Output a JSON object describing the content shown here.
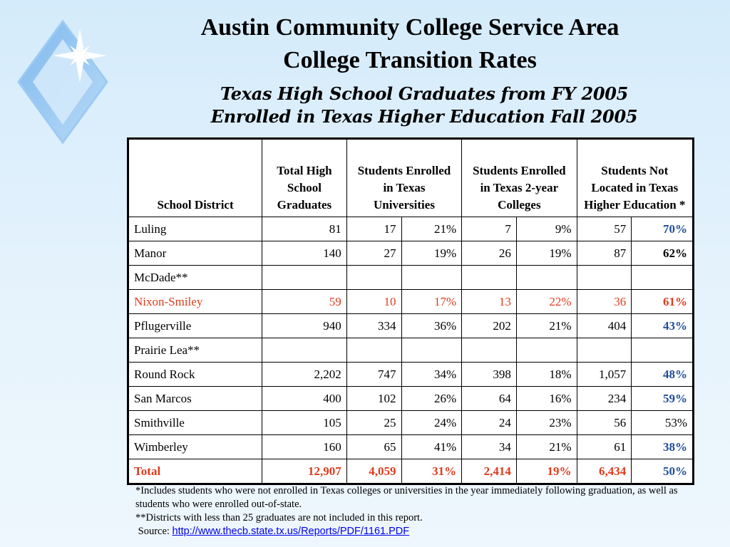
{
  "title_line1": "Austin Community College Service Area",
  "title_line2": "College Transition Rates",
  "subtitle_line1": "Texas High School Graduates from FY 2005",
  "subtitle_line2": "Enrolled in Texas Higher Education Fall 2005",
  "table": {
    "headers": {
      "district": "School District",
      "total": "Total High School Graduates",
      "universities": "Students Enrolled in Texas Universities",
      "colleges": "Students Enrolled in Texas 2-year Colleges",
      "not_located": "Students Not Located in Texas Higher Education *"
    },
    "rows": [
      {
        "district": "Luling",
        "total": "81",
        "univ_n": "17",
        "univ_pct": "21%",
        "coll_n": "7",
        "coll_pct": "9%",
        "nl_n": "57",
        "nl_pct": "70%"
      },
      {
        "district": "Manor",
        "total": "140",
        "univ_n": "27",
        "univ_pct": "19%",
        "coll_n": "26",
        "coll_pct": "19%",
        "nl_n": "87",
        "nl_pct": "62%"
      },
      {
        "district": "McDade**",
        "total": "",
        "univ_n": "",
        "univ_pct": "",
        "coll_n": "",
        "coll_pct": "",
        "nl_n": "",
        "nl_pct": ""
      },
      {
        "district": "Nixon-Smiley",
        "total": "59",
        "univ_n": "10",
        "univ_pct": "17%",
        "coll_n": "13",
        "coll_pct": "22%",
        "nl_n": "36",
        "nl_pct": "61%"
      },
      {
        "district": "Pflugerville",
        "total": "940",
        "univ_n": "334",
        "univ_pct": "36%",
        "coll_n": "202",
        "coll_pct": "21%",
        "nl_n": "404",
        "nl_pct": "43%"
      },
      {
        "district": "Prairie Lea**",
        "total": "",
        "univ_n": "",
        "univ_pct": "",
        "coll_n": "",
        "coll_pct": "",
        "nl_n": "",
        "nl_pct": ""
      },
      {
        "district": "Round Rock",
        "total": "2,202",
        "univ_n": "747",
        "univ_pct": "34%",
        "coll_n": "398",
        "coll_pct": "18%",
        "nl_n": "1,057",
        "nl_pct": "48%"
      },
      {
        "district": "San Marcos",
        "total": "400",
        "univ_n": "102",
        "univ_pct": "26%",
        "coll_n": "64",
        "coll_pct": "16%",
        "nl_n": "234",
        "nl_pct": "59%"
      },
      {
        "district": "Smithville",
        "total": "105",
        "univ_n": "25",
        "univ_pct": "24%",
        "coll_n": "24",
        "coll_pct": "23%",
        "nl_n": "56",
        "nl_pct": "53%"
      },
      {
        "district": "Wimberley",
        "total": "160",
        "univ_n": "65",
        "univ_pct": "41%",
        "coll_n": "34",
        "coll_pct": "21%",
        "nl_n": "61",
        "nl_pct": "38%"
      },
      {
        "district": "Total",
        "total": "12,907",
        "univ_n": "4,059",
        "univ_pct": "31%",
        "coll_n": "2,414",
        "coll_pct": "19%",
        "nl_n": "6,434",
        "nl_pct": "50%"
      }
    ]
  },
  "notes": {
    "footnote1": "*Includes students who were not enrolled in Texas colleges or universities in the year immediately following graduation, as well as students who were enrolled out-of-state.",
    "footnote2": "**Districts with less than 25 graduates are not included in this report.",
    "source_label": "Source:",
    "source_link": "http://www.thecb.state.tx.us/Reports/PDF/1161.PDF"
  },
  "colors": {
    "background": "#dcedfa",
    "highlight_red": "#e03b1c",
    "rate_blue": "#1f4e9a",
    "link_blue": "#0000ee"
  }
}
